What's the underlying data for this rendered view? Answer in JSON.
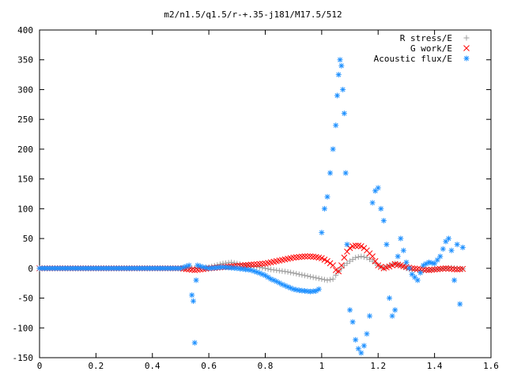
{
  "chart_data": {
    "type": "scatter",
    "title": "m2/n1.5/q1.5/r-+.35-j181/M17.5/512",
    "xlabel": "",
    "ylabel": "",
    "xlim": [
      0,
      1.6
    ],
    "ylim": [
      -150,
      400
    ],
    "x_ticks": [
      "0",
      "0.2",
      "0.4",
      "0.6",
      "0.8",
      "1",
      "1.2",
      "1.4",
      "1.6"
    ],
    "y_ticks": [
      "400",
      "350",
      "300",
      "250",
      "200",
      "150",
      "100",
      "50",
      "0",
      "-50",
      "-100",
      "-150"
    ],
    "grid": false,
    "legend_position": "top-right",
    "series": [
      {
        "name": "R stress/E",
        "marker": "plus",
        "color": "#a0a0a0",
        "x": [
          0,
          0.1,
          0.2,
          0.3,
          0.4,
          0.5,
          0.55,
          0.6,
          0.65,
          0.68,
          0.7,
          0.72,
          0.75,
          0.78,
          0.8,
          0.82,
          0.85,
          0.88,
          0.9,
          0.92,
          0.94,
          0.96,
          0.98,
          1.0,
          1.02,
          1.04,
          1.06,
          1.08,
          1.1,
          1.12,
          1.14,
          1.16,
          1.18,
          1.2,
          1.22,
          1.24,
          1.26,
          1.28,
          1.3,
          1.32,
          1.34,
          1.36,
          1.38,
          1.4,
          1.42,
          1.44,
          1.46,
          1.48,
          1.5
        ],
        "y": [
          0,
          0,
          0,
          0,
          0,
          0,
          0,
          2,
          8,
          10,
          8,
          6,
          4,
          2,
          0,
          -2,
          -4,
          -6,
          -8,
          -10,
          -12,
          -14,
          -16,
          -18,
          -20,
          -18,
          -5,
          5,
          12,
          18,
          20,
          18,
          12,
          5,
          0,
          5,
          8,
          5,
          0,
          -2,
          -3,
          -4,
          -3,
          -2,
          -1,
          0,
          1,
          0,
          -1
        ]
      },
      {
        "name": "G work/E",
        "marker": "cross",
        "color": "#ff0000",
        "x": [
          0,
          0.1,
          0.2,
          0.3,
          0.4,
          0.5,
          0.55,
          0.6,
          0.65,
          0.7,
          0.75,
          0.8,
          0.82,
          0.84,
          0.86,
          0.88,
          0.9,
          0.92,
          0.94,
          0.96,
          0.98,
          1.0,
          1.02,
          1.04,
          1.05,
          1.06,
          1.07,
          1.08,
          1.09,
          1.1,
          1.11,
          1.12,
          1.13,
          1.14,
          1.15,
          1.16,
          1.17,
          1.18,
          1.19,
          1.2,
          1.22,
          1.24,
          1.26,
          1.28,
          1.3,
          1.32,
          1.34,
          1.36,
          1.38,
          1.4,
          1.42,
          1.44,
          1.46,
          1.48,
          1.5
        ],
        "y": [
          0,
          0,
          0,
          0,
          0,
          0,
          -3,
          0,
          2,
          4,
          6,
          8,
          10,
          12,
          14,
          16,
          18,
          19,
          20,
          20,
          19,
          17,
          12,
          5,
          -3,
          -5,
          5,
          18,
          28,
          34,
          37,
          38,
          38,
          37,
          34,
          30,
          25,
          20,
          12,
          5,
          0,
          3,
          7,
          5,
          2,
          0,
          -1,
          -2,
          -3,
          -2,
          -1,
          0,
          -1,
          -2,
          -1
        ]
      },
      {
        "name": "Acoustic flux/E",
        "marker": "star",
        "color": "#1e90ff",
        "x": [
          0,
          0.1,
          0.2,
          0.3,
          0.4,
          0.5,
          0.53,
          0.54,
          0.545,
          0.55,
          0.555,
          0.56,
          0.58,
          0.6,
          0.65,
          0.7,
          0.75,
          0.78,
          0.8,
          0.82,
          0.84,
          0.86,
          0.88,
          0.9,
          0.92,
          0.94,
          0.96,
          0.98,
          0.99,
          1.0,
          1.01,
          1.02,
          1.03,
          1.04,
          1.05,
          1.055,
          1.06,
          1.065,
          1.07,
          1.075,
          1.08,
          1.085,
          1.09,
          1.1,
          1.11,
          1.12,
          1.13,
          1.14,
          1.15,
          1.16,
          1.17,
          1.18,
          1.19,
          1.2,
          1.21,
          1.22,
          1.23,
          1.24,
          1.25,
          1.26,
          1.27,
          1.28,
          1.3,
          1.32,
          1.34,
          1.36,
          1.38,
          1.4,
          1.42,
          1.44,
          1.45,
          1.46,
          1.47,
          1.48,
          1.49,
          1.5
        ],
        "y": [
          0,
          0,
          0,
          0,
          0,
          0,
          5,
          -45,
          -55,
          -125,
          -20,
          5,
          2,
          0,
          2,
          0,
          -3,
          -8,
          -12,
          -18,
          -22,
          -27,
          -31,
          -35,
          -37,
          -38,
          -39,
          -38,
          -35,
          60,
          100,
          120,
          160,
          200,
          240,
          290,
          325,
          350,
          340,
          300,
          260,
          160,
          40,
          -70,
          -90,
          -120,
          -135,
          -142,
          -130,
          -110,
          -80,
          110,
          130,
          135,
          100,
          80,
          40,
          -50,
          -80,
          -70,
          20,
          50,
          10,
          -10,
          -20,
          5,
          10,
          8,
          20,
          45,
          50,
          30,
          -20,
          40,
          -60,
          35
        ]
      }
    ]
  }
}
